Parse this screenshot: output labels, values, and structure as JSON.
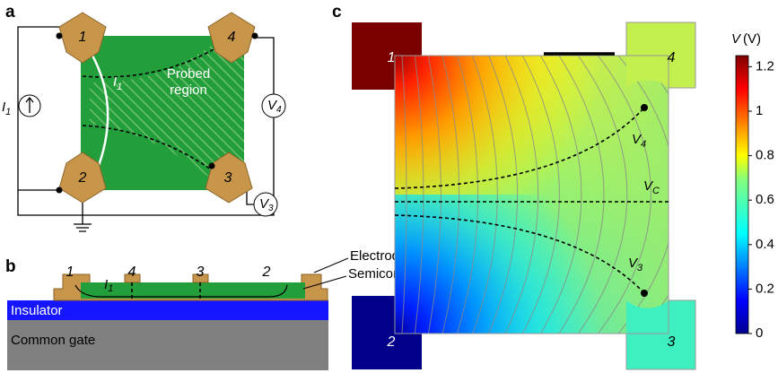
{
  "panel_a": {
    "label": "a",
    "electrodes": [
      "1",
      "2",
      "3",
      "4"
    ],
    "current_source": {
      "symbol": "I",
      "subscript": "1"
    },
    "current_path": {
      "symbol": "I",
      "subscript": "1"
    },
    "voltmeters": [
      {
        "symbol": "V",
        "subscript": "4"
      },
      {
        "symbol": "V",
        "subscript": "3"
      }
    ],
    "region_label": [
      "Probed",
      "region"
    ]
  },
  "panel_b": {
    "label": "b",
    "electrodes": [
      "1",
      "4",
      "3",
      "2"
    ],
    "current": {
      "symbol": "I",
      "subscript": "1"
    },
    "layers": [
      "Electrodes",
      "Semiconductor",
      "Insulator",
      "Common gate"
    ]
  },
  "panel_c": {
    "label": "c",
    "electrodes": [
      "1",
      "4",
      "2",
      "3"
    ],
    "probes": [
      {
        "symbol": "V",
        "subscript": "4"
      },
      {
        "symbol": "V",
        "subscript": "C"
      },
      {
        "symbol": "V",
        "subscript": "3"
      }
    ],
    "colorbar": {
      "symbol": "V",
      "unit": "(V)",
      "lim": [
        0,
        1.25
      ],
      "ticks": [
        0,
        0.2,
        0.4,
        0.6,
        0.8,
        1,
        1.2
      ]
    }
  }
}
